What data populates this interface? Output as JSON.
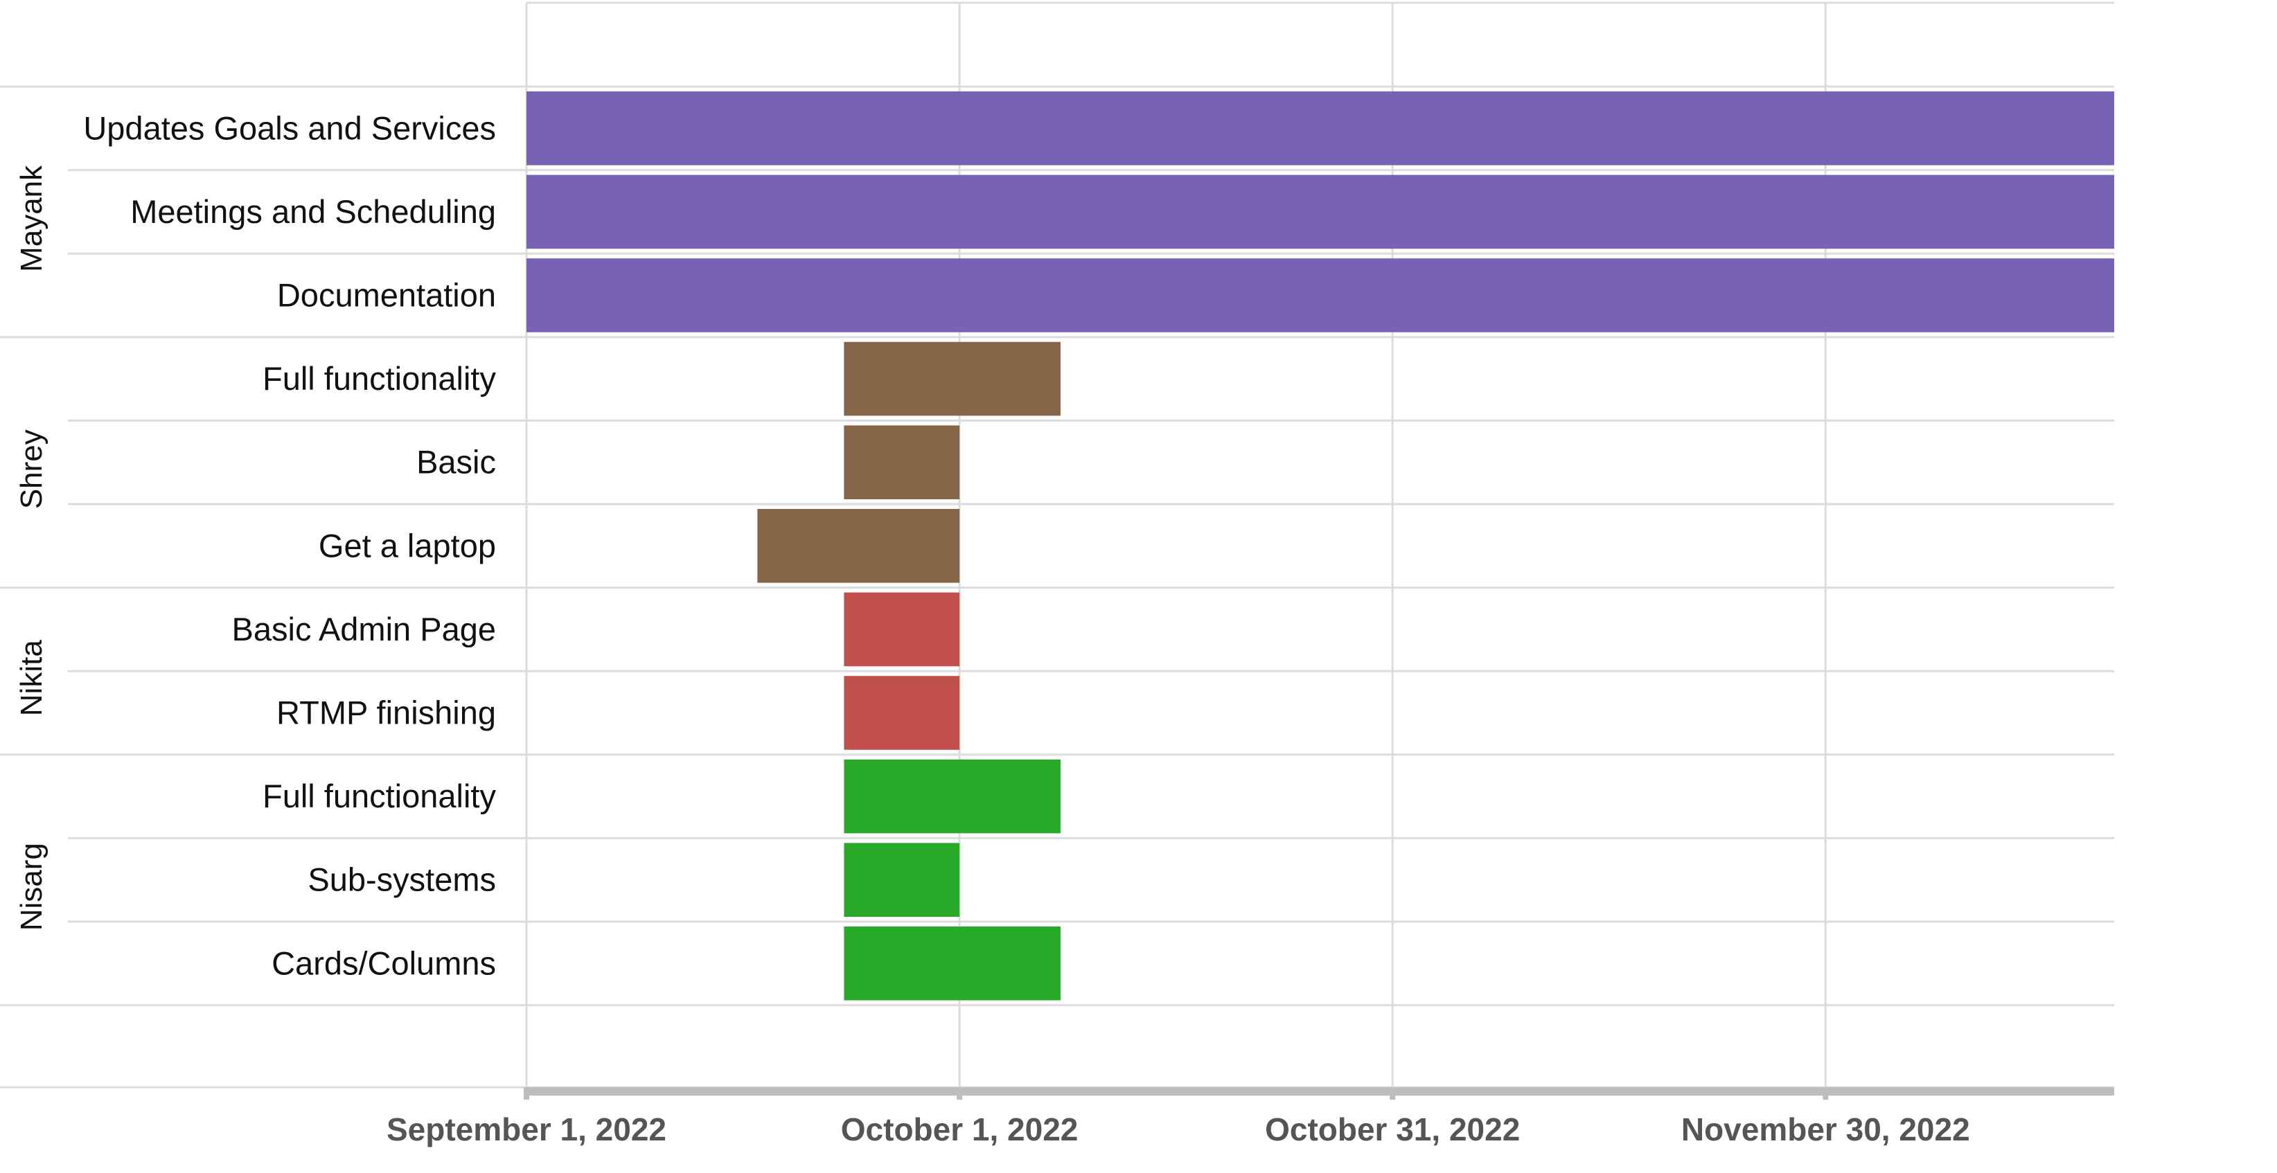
{
  "chart_data": {
    "type": "gantt",
    "title": "",
    "xlabel": "",
    "ylabel": "",
    "x_axis": {
      "type": "date",
      "range": [
        "2022-09-01",
        "2022-12-20"
      ],
      "ticks": [
        {
          "date": "2022-09-01",
          "label": "September 1, 2022"
        },
        {
          "date": "2022-10-01",
          "label": "October 1, 2022"
        },
        {
          "date": "2022-10-31",
          "label": "October 31, 2022"
        },
        {
          "date": "2022-11-30",
          "label": "November 30, 2022"
        }
      ]
    },
    "grid": true,
    "groups": [
      {
        "name": "Mayank",
        "color": "#7862b4",
        "tasks": [
          {
            "label": "Updates Goals and Services",
            "start": "2022-09-01",
            "end": "2022-12-20"
          },
          {
            "label": "Meetings and Scheduling",
            "start": "2022-09-01",
            "end": "2022-12-20"
          },
          {
            "label": "Documentation",
            "start": "2022-09-01",
            "end": "2022-12-20"
          }
        ]
      },
      {
        "name": "Shrey",
        "color": "#846548",
        "tasks": [
          {
            "label": "Full functionality",
            "start": "2022-09-23",
            "end": "2022-10-08"
          },
          {
            "label": "Basic",
            "start": "2022-09-23",
            "end": "2022-10-01"
          },
          {
            "label": "Get a laptop",
            "start": "2022-09-17",
            "end": "2022-10-01"
          }
        ]
      },
      {
        "name": "Nikita",
        "color": "#c04f4c",
        "tasks": [
          {
            "label": "Basic Admin Page",
            "start": "2022-09-23",
            "end": "2022-10-01"
          },
          {
            "label": "RTMP finishing",
            "start": "2022-09-23",
            "end": "2022-10-01"
          }
        ]
      },
      {
        "name": "Nisarg",
        "color": "#28aa28",
        "tasks": [
          {
            "label": "Full functionality",
            "start": "2022-09-23",
            "end": "2022-10-08"
          },
          {
            "label": "Sub-systems",
            "start": "2022-09-23",
            "end": "2022-10-01"
          },
          {
            "label": "Cards/Columns",
            "start": "2022-09-23",
            "end": "2022-10-08"
          }
        ]
      }
    ]
  }
}
